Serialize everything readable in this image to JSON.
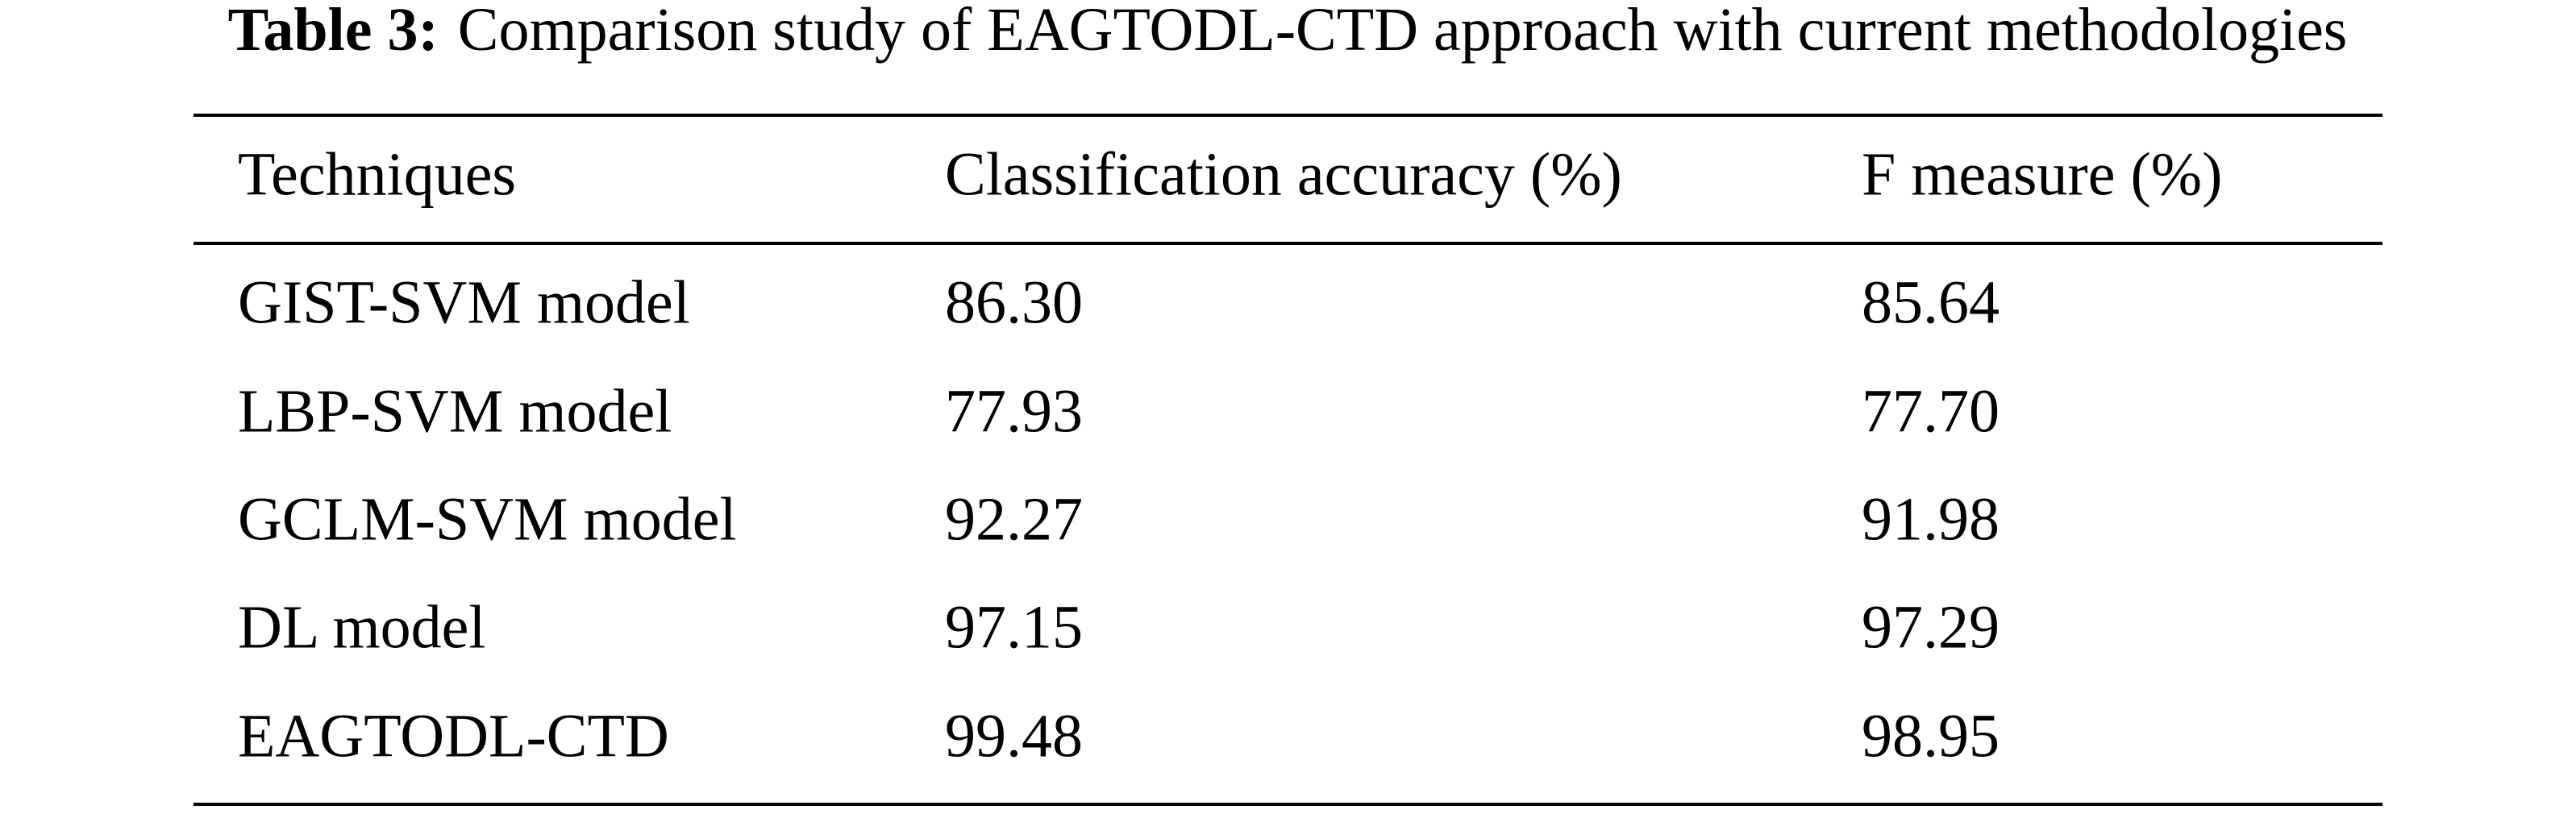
{
  "caption": {
    "label": "Table 3:",
    "text": "Comparison study of EAGTODL-CTD approach with current methodologies"
  },
  "table": {
    "header": [
      "Techniques",
      "Classification accuracy (%)",
      "F measure (%)"
    ],
    "rows": [
      [
        "GIST-SVM model",
        "86.30",
        "85.64"
      ],
      [
        "LBP-SVM model",
        "77.93",
        "77.70"
      ],
      [
        "GCLM-SVM model",
        "92.27",
        "91.98"
      ],
      [
        "DL model",
        "97.15",
        "97.29"
      ],
      [
        "EAGTODL-CTD",
        "99.48",
        "98.95"
      ]
    ]
  }
}
